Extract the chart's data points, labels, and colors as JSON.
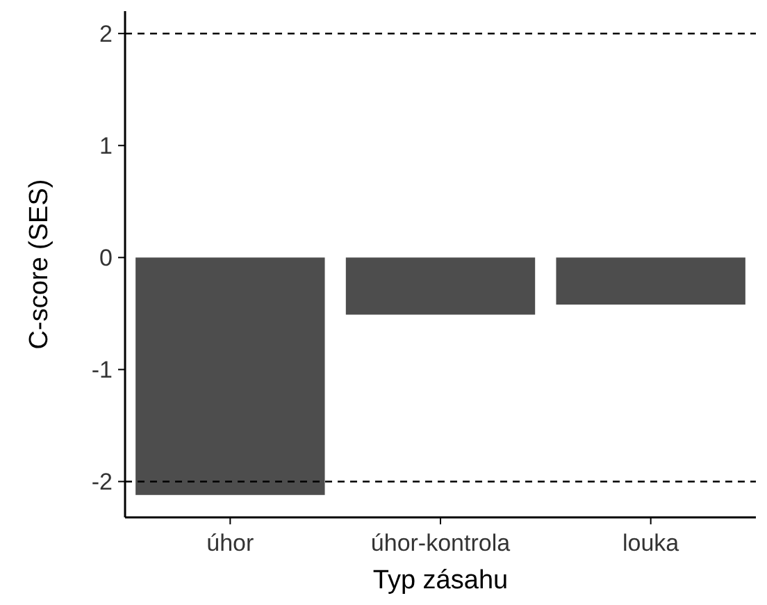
{
  "chart_data": {
    "type": "bar",
    "xlabel": "Typ zásahu",
    "ylabel": "C-score (SES)",
    "categories": [
      "úhor",
      "úhor-kontrola",
      "louka"
    ],
    "values": [
      -2.12,
      -0.51,
      -0.42
    ],
    "color": "#4d4d4d",
    "ylim": [
      -2.32,
      2.2
    ],
    "yticks": [
      -2,
      -1,
      0,
      1,
      2
    ],
    "grid": false,
    "ref_lines": [
      {
        "axis": "y",
        "value": 2,
        "line_style": "dashed",
        "color": "#000000"
      },
      {
        "axis": "y",
        "value": -2,
        "line_style": "dashed",
        "color": "#000000"
      }
    ]
  }
}
